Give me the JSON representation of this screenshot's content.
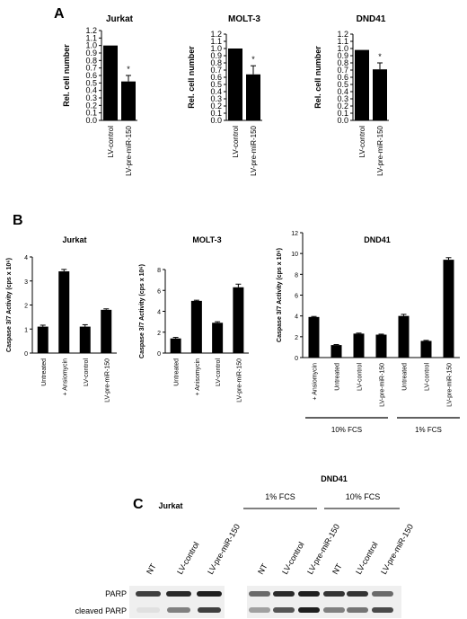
{
  "panels": {
    "a": "A",
    "b": "B",
    "c": "C"
  },
  "section_a": {
    "ylabel": "Rel. cell number",
    "yticks": [
      "0.0",
      "0.1",
      "0.2",
      "0.3",
      "0.4",
      "0.5",
      "0.6",
      "0.7",
      "0.8",
      "0.9",
      "1.0",
      "1.1",
      "1.2"
    ],
    "categories": [
      "LV-control",
      "LV-pre-miR-150"
    ],
    "significance": "*",
    "colors": {
      "bar": "#000000"
    }
  },
  "section_b": {
    "ylabel": "Caspase 3/7 Activity (cps x 10⁶)",
    "conditions": {
      "left": "10% FCS",
      "right": "1% FCS"
    },
    "colors": {
      "bar": "#000000"
    }
  },
  "section_c": {
    "jurkat_title": "Jurkat",
    "dnd41_title": "DND41",
    "groups": {
      "left": "1% FCS",
      "right": "10% FCS"
    },
    "lanes_jurkat": [
      "NT",
      "LV-control",
      "LV-pre-miR-150"
    ],
    "lanes_dnd41": [
      "NT",
      "LV-control",
      "LV-pre-miR-150",
      "NT",
      "LV-control",
      "LV-pre-miR-150"
    ],
    "bands": {
      "parp": "PARP",
      "cleaved": "cleaved PARP"
    },
    "parp_intensity_jurkat": [
      0.8,
      0.9,
      0.95
    ],
    "cleaved_intensity_jurkat": [
      0.05,
      0.5,
      0.8
    ],
    "parp_intensity_dnd41": [
      0.6,
      0.9,
      0.95,
      0.85,
      0.85,
      0.6
    ],
    "cleaved_intensity_dnd41": [
      0.35,
      0.7,
      0.95,
      0.5,
      0.55,
      0.75
    ]
  },
  "chart_data": [
    {
      "type": "bar",
      "title": "Jurkat",
      "ylabel": "Rel. cell number",
      "categories": [
        "LV-control",
        "LV-pre-miR-150"
      ],
      "values": [
        1.0,
        0.52
      ],
      "errors": [
        0,
        0.08
      ],
      "ylim": [
        0,
        1.2
      ]
    },
    {
      "type": "bar",
      "title": "MOLT-3",
      "ylabel": "Rel. cell number",
      "categories": [
        "LV-control",
        "LV-pre-miR-150"
      ],
      "values": [
        1.0,
        0.64
      ],
      "errors": [
        0,
        0.12
      ],
      "ylim": [
        0,
        1.2
      ]
    },
    {
      "type": "bar",
      "title": "DND41",
      "ylabel": "Rel. cell number",
      "categories": [
        "LV-control",
        "LV-pre-miR-150"
      ],
      "values": [
        0.98,
        0.71
      ],
      "errors": [
        0,
        0.09
      ],
      "ylim": [
        0,
        1.2
      ]
    },
    {
      "type": "bar",
      "title": "Jurkat",
      "ylabel": "Caspase 3/7 Activity (cps x 10⁶)",
      "categories": [
        "Untreated",
        "+ Ansiomycin",
        "LV-control",
        "LV-pre-miR-150"
      ],
      "values": [
        1.1,
        3.4,
        1.1,
        1.8
      ],
      "errors": [
        0.06,
        0.08,
        0.08,
        0.04
      ],
      "ylim": [
        0,
        4
      ],
      "yticks": [
        "0",
        "1",
        "2",
        "3",
        "4"
      ]
    },
    {
      "type": "bar",
      "title": "MOLT-3",
      "ylabel": "Caspase 3/7 Activity (cps x 10⁶)",
      "categories": [
        "Untreated",
        "+ Anisomycin",
        "LV-control",
        "LV-pre-miR-150"
      ],
      "values": [
        1.4,
        5.0,
        2.9,
        6.3
      ],
      "errors": [
        0.1,
        0.06,
        0.1,
        0.3
      ],
      "ylim": [
        0,
        8
      ],
      "yticks": [
        "0",
        "2",
        "4",
        "6",
        "8"
      ]
    },
    {
      "type": "bar",
      "title": "DND41",
      "ylabel": "Caspase 3/7 Activity (cps x 10⁶)",
      "categories": [
        "+ Ansiomycin",
        "Untreated",
        "LV-control",
        "LV-pre-miR-150",
        "Untreated",
        "LV-control",
        "LV-pre-miR-150"
      ],
      "values": [
        3.9,
        1.2,
        2.3,
        2.2,
        4.0,
        1.6,
        9.4
      ],
      "errors": [
        0.05,
        0.05,
        0.05,
        0.05,
        0.15,
        0.05,
        0.2
      ],
      "ylim": [
        0,
        12
      ],
      "yticks": [
        "0",
        "2",
        "4",
        "6",
        "8",
        "10",
        "12"
      ]
    }
  ]
}
